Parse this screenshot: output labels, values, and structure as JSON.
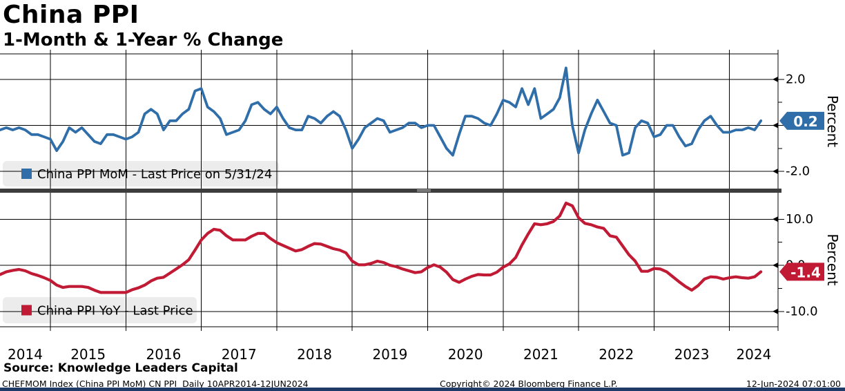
{
  "header": {
    "title": "China PPI",
    "subtitle": "1-Month & 1-Year % Change"
  },
  "x_axis": {
    "year_labels": [
      "2014",
      "2015",
      "2016",
      "2017",
      "2018",
      "2019",
      "2020",
      "2021",
      "2022",
      "2023",
      "2024"
    ],
    "xlim_years": [
      2014.33,
      2024.64
    ]
  },
  "chart_data": [
    {
      "type": "line",
      "panel": "top",
      "name": "China PPI MoM",
      "legend_label": "China PPI MoM - Last Price on 5/31/24",
      "color": "#2f6ea9",
      "ylabel": "Percent",
      "ylim": [
        -2.75,
        3.11
      ],
      "gridlines_y": [
        2.0,
        0.0,
        -2.0
      ],
      "yticks_major": [
        {
          "value": 2.0,
          "label": "2.0"
        },
        {
          "value": 0.0,
          "label": "0.0"
        },
        {
          "value": -2.0,
          "label": "-2.0"
        }
      ],
      "yticks_minor": [
        1.0,
        -1.0
      ],
      "last_price": {
        "value": 0.2,
        "label": "0.2",
        "date": "5/31/24"
      },
      "x_start": "2014-04",
      "x_freq": "monthly",
      "values": [
        -0.2,
        -0.1,
        -0.2,
        -0.1,
        -0.2,
        -0.4,
        -0.4,
        -0.5,
        -0.6,
        -1.1,
        -0.7,
        -0.1,
        -0.3,
        -0.1,
        -0.4,
        -0.7,
        -0.8,
        -0.4,
        -0.4,
        -0.5,
        -0.6,
        -0.5,
        -0.3,
        0.5,
        0.7,
        0.5,
        -0.2,
        0.2,
        0.2,
        0.5,
        0.7,
        1.5,
        1.6,
        0.8,
        0.6,
        0.3,
        -0.4,
        -0.3,
        -0.2,
        0.2,
        0.9,
        1.0,
        0.7,
        0.5,
        0.8,
        0.3,
        -0.1,
        -0.2,
        -0.2,
        0.4,
        0.3,
        0.1,
        0.4,
        0.6,
        0.4,
        -0.2,
        -1.0,
        -0.6,
        -0.1,
        0.1,
        0.3,
        0.2,
        -0.3,
        -0.2,
        -0.1,
        0.1,
        0.1,
        -0.1,
        0.0,
        0.0,
        -0.5,
        -1.0,
        -1.3,
        -0.4,
        0.4,
        0.4,
        0.3,
        0.1,
        0.0,
        0.5,
        1.1,
        1.0,
        0.8,
        1.6,
        0.9,
        1.6,
        0.3,
        0.5,
        0.7,
        1.2,
        2.5,
        0.0,
        -1.2,
        -0.2,
        0.5,
        1.1,
        0.6,
        0.1,
        0.0,
        -1.3,
        -1.2,
        -0.1,
        0.2,
        0.1,
        -0.5,
        -0.4,
        0.0,
        0.0,
        -0.5,
        -0.9,
        -0.8,
        -0.2,
        0.2,
        0.4,
        0.0,
        -0.3,
        -0.3,
        -0.2,
        -0.2,
        -0.1,
        -0.2,
        0.2
      ]
    },
    {
      "type": "line",
      "panel": "bottom",
      "name": "China PPI YoY",
      "legend_label": "China PPI YoY - Last Price",
      "color": "#c01a35",
      "ylabel": "Percent",
      "ylim": [
        -13.33,
        15.73
      ],
      "gridlines_y": [
        10.0,
        0.0,
        -10.0
      ],
      "yticks_major": [
        {
          "value": 10.0,
          "label": "10.0"
        },
        {
          "value": 0.0,
          "label": "0.0"
        },
        {
          "value": -10.0,
          "label": "-10.0"
        }
      ],
      "yticks_minor": [
        5.0,
        -5.0
      ],
      "last_price": {
        "value": -1.4,
        "label": "-1.4"
      },
      "x_start": "2014-04",
      "x_freq": "monthly",
      "values": [
        -2.0,
        -1.4,
        -1.1,
        -0.9,
        -1.2,
        -1.8,
        -2.2,
        -2.7,
        -3.3,
        -4.3,
        -4.8,
        -4.6,
        -4.6,
        -4.6,
        -4.8,
        -5.4,
        -5.9,
        -5.9,
        -5.9,
        -5.9,
        -5.9,
        -5.3,
        -4.9,
        -4.3,
        -3.4,
        -2.8,
        -2.6,
        -1.7,
        -0.8,
        0.1,
        1.2,
        3.3,
        5.5,
        6.9,
        7.8,
        7.6,
        6.4,
        5.5,
        5.5,
        5.5,
        6.3,
        6.9,
        6.9,
        5.8,
        4.9,
        4.3,
        3.7,
        3.1,
        3.4,
        4.1,
        4.7,
        4.6,
        4.1,
        3.6,
        3.3,
        2.7,
        0.9,
        0.1,
        0.1,
        0.4,
        0.9,
        0.6,
        0.0,
        -0.3,
        -0.8,
        -1.2,
        -1.6,
        -1.4,
        -0.5,
        0.1,
        -0.4,
        -1.5,
        -3.1,
        -3.7,
        -3.0,
        -2.4,
        -2.0,
        -2.1,
        -2.1,
        -1.5,
        -0.4,
        0.3,
        1.7,
        4.4,
        6.8,
        9.0,
        8.8,
        9.0,
        9.5,
        10.7,
        13.5,
        12.9,
        10.3,
        9.1,
        8.8,
        8.3,
        8.0,
        6.4,
        6.1,
        4.2,
        2.3,
        0.9,
        -1.3,
        -1.3,
        -0.7,
        -0.8,
        -1.4,
        -2.5,
        -3.6,
        -4.6,
        -5.4,
        -4.4,
        -3.0,
        -2.5,
        -2.6,
        -3.0,
        -2.7,
        -2.5,
        -2.7,
        -2.8,
        -2.5,
        -1.4
      ]
    }
  ],
  "footer": {
    "source": "Source: Knowledge Leaders Capital",
    "ticker_info": "CHEFMOM Index (China PPI MoM) CN PPI  Daily 10APR2014-12JUN2024",
    "copyright": "Copyright© 2024 Bloomberg Finance L.P.",
    "timestamp": "12-Jun-2024 07:01:00"
  },
  "colors": {
    "mom_blue": "#2f6ea9",
    "yoy_red": "#c01a35",
    "grid": "#000000",
    "legend_bg": "#ececec",
    "separator": "#3d3d3d",
    "separator_grip": "#b9b9b9",
    "bottom_bar": "#1e3a66",
    "tag_text": "#ffffff"
  }
}
